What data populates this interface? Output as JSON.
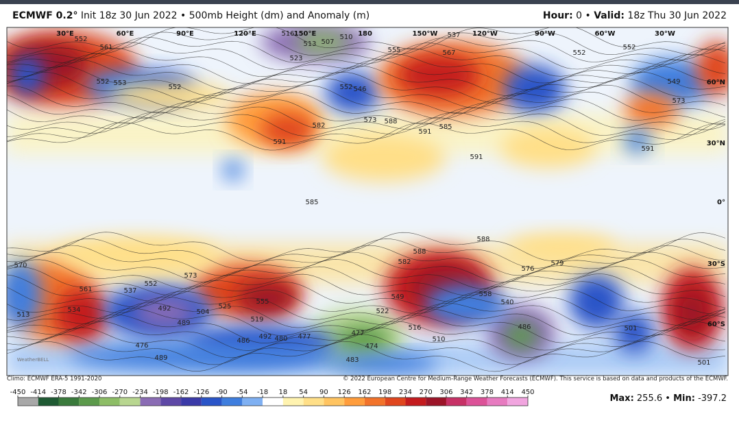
{
  "header": {
    "model": "ECMWF 0.2°",
    "description": "Init 18z 30 Jun 2022 • 500mb Height (dm) and Anomaly (m)",
    "hour_label": "Hour:",
    "hour": "0",
    "separator": "•",
    "valid_label": "Valid:",
    "valid": "18z Thu 30 Jun 2022"
  },
  "map": {
    "longitudes": [
      "30°E",
      "60°E",
      "90°E",
      "120°E",
      "150°E",
      "180",
      "150°W",
      "120°W",
      "90°W",
      "60°W",
      "30°W"
    ],
    "latitudes": [
      "60°N",
      "30°N",
      "0°",
      "30°S",
      "60°S"
    ],
    "contour_labels": [
      552,
      561,
      552,
      553,
      552,
      516,
      513,
      507,
      510,
      523,
      552,
      546,
      555,
      567,
      537,
      573,
      588,
      585,
      591,
      582,
      591,
      591,
      552,
      552,
      549,
      573,
      591,
      585,
      588,
      588,
      582,
      579,
      576,
      573,
      570,
      561,
      534,
      537,
      552,
      492,
      489,
      504,
      525,
      555,
      519,
      549,
      522,
      558,
      540,
      516,
      510,
      477,
      474,
      486,
      492,
      480,
      477,
      489,
      476,
      483,
      501,
      501,
      513,
      486
    ],
    "watermark": "WeatherBELL"
  },
  "footer": {
    "climo": "Climo: ECMWF ERA-5 1991-2020",
    "copyright": "© 2022 European Centre for Medium-Range Weather Forecasts (ECMWF). This service is based on data and products of the ECMWF."
  },
  "colorbar": {
    "ticks": [
      -450,
      -414,
      -378,
      -342,
      -306,
      -270,
      -234,
      -198,
      -162,
      -126,
      -90,
      -54,
      -18,
      18,
      54,
      90,
      126,
      162,
      198,
      234,
      270,
      306,
      342,
      378,
      414,
      450
    ],
    "colors": [
      "#a8a8a8",
      "#1f5a33",
      "#3a7a3c",
      "#5c9a4c",
      "#8dbd66",
      "#b8d690",
      "#8a6cb4",
      "#5e48a6",
      "#3b3aa8",
      "#2a55c8",
      "#3f7ede",
      "#7fb0f2",
      "#ffffff",
      "#fff3b0",
      "#ffdf88",
      "#ffc461",
      "#ff9d3c",
      "#f2732a",
      "#e0461e",
      "#c41b1e",
      "#9c1428",
      "#c73166",
      "#dc5298",
      "#e77bc0",
      "#f1a5df"
    ]
  },
  "stats": {
    "max_label": "Max:",
    "max": 255.6,
    "separator": "•",
    "min_label": "Min:",
    "min": -397.2
  }
}
